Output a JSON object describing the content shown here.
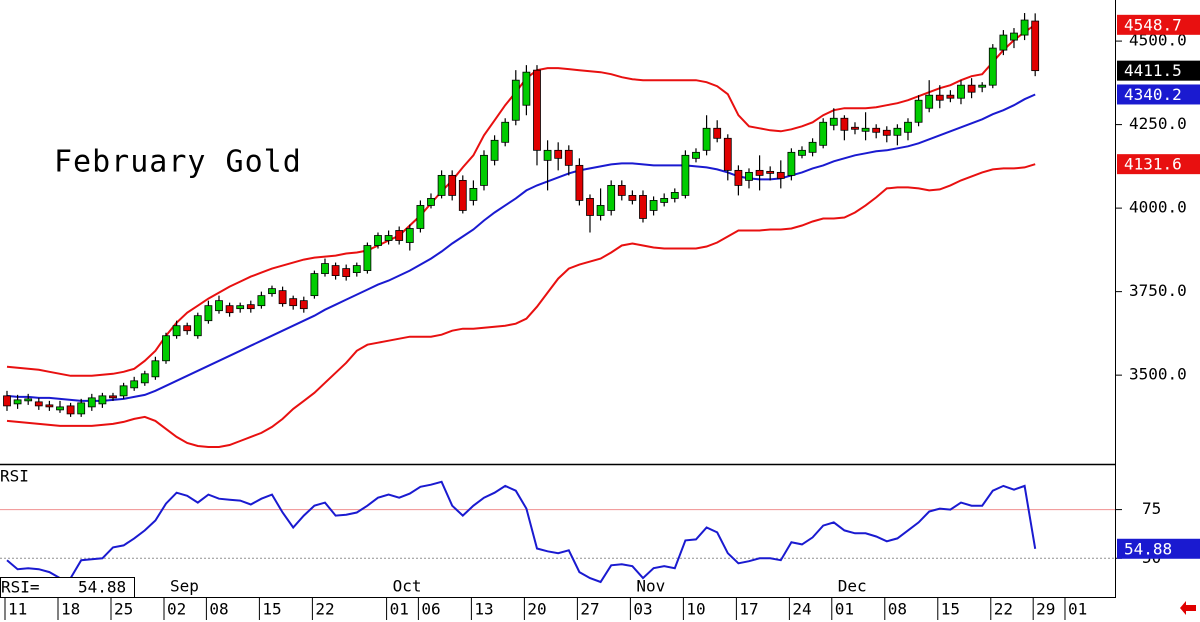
{
  "chart_data": [
    {
      "type": "candlestick",
      "title": "February Gold",
      "x": [
        0,
        1,
        2,
        3,
        4,
        5,
        6,
        7,
        8,
        9,
        10,
        11,
        12,
        13,
        14,
        15,
        16,
        17,
        18,
        19,
        20,
        21,
        22,
        23,
        24,
        25,
        26,
        27,
        28,
        29,
        30,
        31,
        32,
        33,
        34,
        35,
        36,
        37,
        38,
        39,
        40,
        41,
        42,
        43,
        44,
        45,
        46,
        47,
        48,
        49,
        50,
        51,
        52,
        53,
        54,
        55,
        56,
        57,
        58,
        59,
        60,
        61,
        62,
        63,
        64,
        65,
        66,
        67,
        68,
        69,
        70,
        71,
        72,
        73,
        74,
        75,
        76,
        77,
        78,
        79,
        80,
        81,
        82,
        83,
        84,
        85,
        86,
        87,
        88,
        89,
        90,
        91,
        92,
        93,
        94,
        95,
        96,
        97
      ],
      "open": [
        3438,
        3414,
        3423,
        3420,
        3411,
        3396,
        3408,
        3384,
        3405,
        3414,
        3438,
        3438,
        3462,
        3477,
        3495,
        3543,
        3618,
        3648,
        3618,
        3663,
        3693,
        3708,
        3699,
        3711,
        3708,
        3744,
        3753,
        3729,
        3723,
        3738,
        3804,
        3828,
        3819,
        3807,
        3813,
        3888,
        3903,
        3933,
        3897,
        3939,
        4008,
        4038,
        4098,
        4083,
        4023,
        4068,
        4143,
        4197,
        4263,
        4308,
        4413,
        4143,
        4173,
        4173,
        4128,
        4029,
        3978,
        3993,
        4068,
        4038,
        4038,
        3993,
        4017,
        4029,
        4038,
        4149,
        4173,
        4239,
        4209,
        4113,
        4083,
        4113,
        4110,
        4107,
        4098,
        4158,
        4167,
        4188,
        4248,
        4269,
        4242,
        4230,
        4239,
        4233,
        4218,
        4227,
        4257,
        4299,
        4338,
        4338,
        4329,
        4368,
        4362,
        4368,
        4473,
        4503,
        4518,
        4560
      ],
      "high": [
        3453,
        3441,
        3444,
        3432,
        3423,
        3423,
        3417,
        3429,
        3444,
        3447,
        3447,
        3477,
        3495,
        3513,
        3555,
        3627,
        3663,
        3657,
        3687,
        3723,
        3738,
        3717,
        3717,
        3723,
        3750,
        3768,
        3765,
        3738,
        3735,
        3813,
        3849,
        3837,
        3831,
        3837,
        3897,
        3927,
        3933,
        3945,
        3951,
        4023,
        4044,
        4113,
        4113,
        4098,
        4083,
        4173,
        4218,
        4269,
        4413,
        4428,
        4428,
        4203,
        4197,
        4188,
        4149,
        4041,
        4059,
        4083,
        4083,
        4053,
        4053,
        4035,
        4044,
        4059,
        4173,
        4179,
        4278,
        4263,
        4221,
        4128,
        4119,
        4158,
        4125,
        4143,
        4179,
        4185,
        4209,
        4269,
        4299,
        4278,
        4257,
        4287,
        4251,
        4245,
        4251,
        4269,
        4338,
        4383,
        4368,
        4353,
        4383,
        4389,
        4377,
        4491,
        4533,
        4539,
        4584,
        4583
      ],
      "low": [
        3393,
        3399,
        3411,
        3396,
        3393,
        3387,
        3375,
        3375,
        3393,
        3402,
        3423,
        3429,
        3453,
        3468,
        3486,
        3534,
        3609,
        3621,
        3609,
        3654,
        3684,
        3675,
        3687,
        3687,
        3699,
        3735,
        3705,
        3696,
        3687,
        3729,
        3795,
        3786,
        3783,
        3795,
        3804,
        3879,
        3891,
        3891,
        3873,
        3927,
        3999,
        4029,
        4023,
        3984,
        4008,
        4053,
        4128,
        4185,
        4248,
        4278,
        4128,
        4053,
        4113,
        4098,
        4008,
        3927,
        3963,
        3978,
        4023,
        4011,
        3957,
        3978,
        4005,
        4017,
        4029,
        4137,
        4158,
        4197,
        4083,
        4038,
        4059,
        4053,
        4083,
        4059,
        4083,
        4149,
        4155,
        4179,
        4233,
        4203,
        4221,
        4203,
        4209,
        4197,
        4188,
        4203,
        4245,
        4287,
        4299,
        4317,
        4311,
        4329,
        4347,
        4359,
        4458,
        4479,
        4503,
        4395
      ],
      "close": [
        3408,
        3426,
        3429,
        3408,
        3405,
        3405,
        3384,
        3417,
        3432,
        3438,
        3432,
        3468,
        3483,
        3504,
        3543,
        3618,
        3648,
        3633,
        3678,
        3708,
        3723,
        3687,
        3708,
        3699,
        3738,
        3759,
        3714,
        3708,
        3699,
        3804,
        3834,
        3798,
        3795,
        3828,
        3888,
        3918,
        3918,
        3903,
        3939,
        4008,
        4029,
        4098,
        4038,
        3993,
        4059,
        4158,
        4203,
        4257,
        4383,
        4407,
        4173,
        4173,
        4149,
        4128,
        4023,
        3978,
        4008,
        4068,
        4038,
        4023,
        3969,
        4023,
        4029,
        4047,
        4158,
        4167,
        4239,
        4209,
        4113,
        4068,
        4107,
        4098,
        4104,
        4089,
        4167,
        4173,
        4197,
        4257,
        4269,
        4233,
        4236,
        4239,
        4227,
        4218,
        4239,
        4257,
        4323,
        4338,
        4323,
        4329,
        4368,
        4347,
        4368,
        4479,
        4518,
        4524,
        4563,
        4411.5
      ],
      "up_color": "#00cc00",
      "down_color": "#e00000",
      "last_close_color": "#000000",
      "series": [
        {
          "color": "#e81010",
          "values": [
            3525,
            3522,
            3519,
            3516,
            3510,
            3504,
            3498,
            3498,
            3498,
            3501,
            3504,
            3510,
            3519,
            3543,
            3573,
            3618,
            3657,
            3687,
            3708,
            3729,
            3747,
            3765,
            3780,
            3795,
            3807,
            3819,
            3828,
            3837,
            3846,
            3852,
            3855,
            3858,
            3864,
            3867,
            3873,
            3888,
            3903,
            3918,
            3948,
            3978,
            4014,
            4050,
            4083,
            4122,
            4158,
            4218,
            4263,
            4308,
            4347,
            4389,
            4413,
            4419,
            4419,
            4416,
            4413,
            4410,
            4407,
            4401,
            4392,
            4386,
            4383,
            4383,
            4383,
            4383,
            4383,
            4383,
            4377,
            4365,
            4341,
            4278,
            4245,
            4239,
            4233,
            4230,
            4236,
            4245,
            4257,
            4278,
            4293,
            4299,
            4299,
            4299,
            4302,
            4308,
            4314,
            4323,
            4335,
            4347,
            4359,
            4368,
            4383,
            4395,
            4401,
            4437,
            4473,
            4503,
            4527,
            4548.7
          ]
        },
        {
          "color": "#1a1ad0",
          "values": [
            3438,
            3435,
            3435,
            3432,
            3432,
            3429,
            3426,
            3423,
            3423,
            3423,
            3426,
            3429,
            3435,
            3441,
            3453,
            3468,
            3483,
            3498,
            3513,
            3528,
            3543,
            3558,
            3573,
            3588,
            3603,
            3618,
            3633,
            3648,
            3663,
            3678,
            3696,
            3711,
            3726,
            3741,
            3756,
            3771,
            3783,
            3798,
            3813,
            3831,
            3849,
            3870,
            3894,
            3915,
            3936,
            3963,
            3987,
            4008,
            4029,
            4053,
            4068,
            4080,
            4092,
            4104,
            4113,
            4119,
            4125,
            4131,
            4134,
            4134,
            4131,
            4128,
            4128,
            4128,
            4128,
            4125,
            4122,
            4116,
            4107,
            4095,
            4089,
            4086,
            4086,
            4089,
            4098,
            4107,
            4119,
            4128,
            4140,
            4149,
            4158,
            4164,
            4170,
            4173,
            4179,
            4185,
            4194,
            4206,
            4218,
            4230,
            4242,
            4254,
            4266,
            4281,
            4293,
            4308,
            4326,
            4340.2
          ]
        },
        {
          "color": "#e81010",
          "values": [
            3363,
            3360,
            3357,
            3354,
            3351,
            3348,
            3348,
            3348,
            3348,
            3351,
            3354,
            3360,
            3369,
            3375,
            3363,
            3339,
            3315,
            3297,
            3288,
            3285,
            3285,
            3291,
            3303,
            3315,
            3327,
            3345,
            3369,
            3399,
            3423,
            3447,
            3477,
            3507,
            3537,
            3573,
            3591,
            3597,
            3603,
            3609,
            3615,
            3615,
            3615,
            3621,
            3633,
            3639,
            3639,
            3642,
            3645,
            3648,
            3654,
            3669,
            3705,
            3747,
            3789,
            3819,
            3831,
            3840,
            3849,
            3867,
            3888,
            3894,
            3888,
            3882,
            3879,
            3879,
            3879,
            3879,
            3885,
            3897,
            3915,
            3933,
            3933,
            3933,
            3936,
            3936,
            3939,
            3948,
            3960,
            3969,
            3969,
            3972,
            3987,
            4008,
            4032,
            4059,
            4062,
            4062,
            4059,
            4053,
            4056,
            4068,
            4083,
            4095,
            4107,
            4116,
            4119,
            4119,
            4122,
            4131.6
          ]
        }
      ],
      "xlim": [
        -0.66,
        104.53
      ],
      "ylim": [
        3237,
        4623
      ],
      "yticks": [
        {
          "value": 4500,
          "label": "4500.0"
        },
        {
          "value": 4250,
          "label": "4250.0"
        },
        {
          "value": 4000,
          "label": "4000.0"
        },
        {
          "value": 3750,
          "label": "3750.0"
        },
        {
          "value": 3500,
          "label": "3500.0"
        }
      ]
    },
    {
      "type": "line",
      "title": "RSI",
      "value_label": "RSI=",
      "color": "#1a1ad0",
      "x": [
        0,
        1,
        2,
        3,
        4,
        5,
        6,
        7,
        8,
        9,
        10,
        11,
        12,
        13,
        14,
        15,
        16,
        17,
        18,
        19,
        20,
        21,
        22,
        23,
        24,
        25,
        26,
        27,
        28,
        29,
        30,
        31,
        32,
        33,
        34,
        35,
        36,
        37,
        38,
        39,
        40,
        41,
        42,
        43,
        44,
        45,
        46,
        47,
        48,
        49,
        50,
        51,
        52,
        53,
        54,
        55,
        56,
        57,
        58,
        59,
        60,
        61,
        62,
        63,
        64,
        65,
        66,
        67,
        68,
        69,
        70,
        71,
        72,
        73,
        74,
        75,
        76,
        77,
        78,
        79,
        80,
        81,
        82,
        83,
        84,
        85,
        86,
        87,
        88,
        89,
        90,
        91,
        92,
        93,
        94,
        95,
        96,
        97
      ],
      "values": [
        49.0,
        44.4,
        44.9,
        44.4,
        42.9,
        39.8,
        39.8,
        49.0,
        49.5,
        50.0,
        55.6,
        56.6,
        60.2,
        64.3,
        69.4,
        78.1,
        83.7,
        82.1,
        78.6,
        82.7,
        80.6,
        80.1,
        79.6,
        77.6,
        80.6,
        82.7,
        73.5,
        65.8,
        71.9,
        77.0,
        78.6,
        71.9,
        72.4,
        73.5,
        77.0,
        81.1,
        82.7,
        81.1,
        83.2,
        86.7,
        87.8,
        89.3,
        77.0,
        71.9,
        77.0,
        81.1,
        83.7,
        87.2,
        84.7,
        75.5,
        55.0,
        53.6,
        52.6,
        54.1,
        42.9,
        39.8,
        37.8,
        46.4,
        46.9,
        45.9,
        39.8,
        44.9,
        45.9,
        44.9,
        59.2,
        59.7,
        65.8,
        63.3,
        52.6,
        47.4,
        48.5,
        50.0,
        50.0,
        49.0,
        58.2,
        57.1,
        60.7,
        66.8,
        68.4,
        64.3,
        62.8,
        62.8,
        61.2,
        58.7,
        60.2,
        64.3,
        68.4,
        74.0,
        75.5,
        75.0,
        78.6,
        77.0,
        77.0,
        84.7,
        87.2,
        85.2,
        87.2,
        54.88
      ],
      "xlim": [
        -0.66,
        104.53
      ],
      "ylim": [
        30.1,
        97.4
      ],
      "yticks": [
        75,
        50
      ],
      "grid": true,
      "grid_colors": [
        "#f09090",
        "#909090"
      ],
      "xticks": [
        {
          "value": 0,
          "label": "11"
        },
        {
          "value": 5,
          "label": "18"
        },
        {
          "value": 10,
          "label": "25"
        },
        {
          "value": 15,
          "label": "02"
        },
        {
          "value": 19,
          "label": "08"
        },
        {
          "value": 24,
          "label": "15"
        },
        {
          "value": 29,
          "label": "22"
        },
        {
          "value": 36,
          "label": "01"
        },
        {
          "value": 39,
          "label": "06"
        },
        {
          "value": 44,
          "label": "13"
        },
        {
          "value": 49,
          "label": "20"
        },
        {
          "value": 54,
          "label": "27"
        },
        {
          "value": 59,
          "label": "03"
        },
        {
          "value": 64,
          "label": "10"
        },
        {
          "value": 69,
          "label": "17"
        },
        {
          "value": 74,
          "label": "24"
        },
        {
          "value": 78,
          "label": "01"
        },
        {
          "value": 83,
          "label": "08"
        },
        {
          "value": 88,
          "label": "15"
        },
        {
          "value": 93,
          "label": "22"
        },
        {
          "value": 97,
          "label": "29"
        },
        {
          "value": 100,
          "label": "01"
        }
      ],
      "month_ticks": [
        {
          "value": 15,
          "label": "Sep"
        },
        {
          "value": 36,
          "label": "Oct"
        },
        {
          "value": 59,
          "label": "Nov"
        },
        {
          "value": 78,
          "label": "Dec"
        }
      ]
    }
  ]
}
